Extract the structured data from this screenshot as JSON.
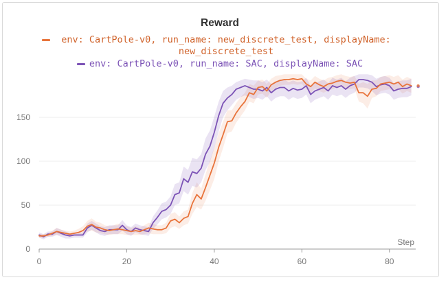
{
  "chart_data": {
    "type": "line",
    "title": "Reward",
    "xlabel": "Step",
    "ylabel": "",
    "xlim": [
      0,
      86
    ],
    "ylim": [
      0,
      200
    ],
    "xticks": [
      0,
      20,
      40,
      60,
      80
    ],
    "yticks": [
      0,
      50,
      100,
      150
    ],
    "grid": true,
    "legend_position": "top-center",
    "series": [
      {
        "name": "env: CartPole-v0, run_name: new_discrete_test, displayName: new_discrete_test",
        "color": "#e8733a",
        "x": [
          0,
          1,
          2,
          3,
          4,
          5,
          6,
          7,
          8,
          9,
          10,
          11,
          12,
          13,
          14,
          15,
          16,
          17,
          18,
          19,
          20,
          21,
          22,
          23,
          24,
          25,
          26,
          27,
          28,
          29,
          30,
          31,
          32,
          33,
          34,
          35,
          36,
          37,
          38,
          39,
          40,
          41,
          42,
          43,
          44,
          45,
          46,
          47,
          48,
          49,
          50,
          51,
          52,
          53,
          54,
          55,
          56,
          57,
          58,
          59,
          60,
          61,
          62,
          63,
          64,
          65,
          66,
          67,
          68,
          69,
          70,
          71,
          72,
          73,
          74,
          75,
          76,
          77,
          78,
          79,
          80,
          81,
          82,
          83,
          84,
          85
        ],
        "y": [
          15,
          15,
          16,
          18,
          20,
          19,
          18,
          17,
          18,
          19,
          21,
          26,
          28,
          25,
          24,
          22,
          21,
          22,
          23,
          22,
          21,
          20,
          21,
          20,
          22,
          24,
          23,
          22,
          22,
          24,
          32,
          34,
          30,
          35,
          37,
          52,
          62,
          57,
          70,
          84,
          98,
          116,
          130,
          145,
          146,
          155,
          162,
          168,
          178,
          176,
          184,
          185,
          180,
          187,
          190,
          192,
          193,
          193,
          194,
          193,
          194,
          188,
          185,
          190,
          187,
          185,
          188,
          189,
          191,
          192,
          190,
          189,
          190,
          178,
          178,
          174,
          182,
          183,
          188,
          189,
          190,
          188,
          190,
          185,
          188,
          186
        ],
        "band": {
          "lower": [
            13,
            13,
            14,
            15,
            16,
            16,
            15,
            14,
            15,
            15,
            16,
            20,
            21,
            19,
            18,
            17,
            16,
            17,
            17,
            17,
            16,
            16,
            16,
            16,
            17,
            18,
            17,
            17,
            17,
            18,
            24,
            26,
            23,
            27,
            29,
            40,
            48,
            45,
            55,
            67,
            80,
            100,
            115,
            132,
            134,
            144,
            151,
            158,
            168,
            166,
            176,
            177,
            172,
            180,
            183,
            186,
            187,
            187,
            188,
            187,
            188,
            182,
            178,
            183,
            180,
            178,
            181,
            182,
            184,
            185,
            183,
            182,
            183,
            168,
            166,
            160,
            172,
            174,
            180,
            181,
            182,
            180,
            182,
            177,
            180,
            178
          ],
          "upper": [
            17,
            17,
            18,
            21,
            24,
            22,
            21,
            20,
            21,
            23,
            26,
            32,
            35,
            31,
            30,
            27,
            26,
            27,
            29,
            27,
            26,
            24,
            26,
            24,
            27,
            30,
            29,
            27,
            27,
            30,
            40,
            42,
            37,
            43,
            45,
            64,
            76,
            69,
            85,
            101,
            116,
            132,
            145,
            158,
            158,
            166,
            173,
            178,
            188,
            186,
            192,
            193,
            188,
            194,
            197,
            198,
            199,
            199,
            199,
            199,
            199,
            194,
            192,
            197,
            194,
            192,
            195,
            196,
            198,
            199,
            197,
            196,
            197,
            188,
            190,
            188,
            192,
            192,
            196,
            197,
            198,
            196,
            198,
            193,
            196,
            194
          ]
        }
      },
      {
        "name": "env: CartPole-v0, run_name: SAC, displayName: SAC",
        "color": "#7c53b6",
        "x": [
          0,
          1,
          2,
          3,
          4,
          5,
          6,
          7,
          8,
          9,
          10,
          11,
          12,
          13,
          14,
          15,
          16,
          17,
          18,
          19,
          20,
          21,
          22,
          23,
          24,
          25,
          26,
          27,
          28,
          29,
          30,
          31,
          32,
          33,
          34,
          35,
          36,
          37,
          38,
          39,
          40,
          41,
          42,
          43,
          44,
          45,
          46,
          47,
          48,
          49,
          50,
          51,
          52,
          53,
          54,
          55,
          56,
          57,
          58,
          59,
          60,
          61,
          62,
          63,
          64,
          65,
          66,
          67,
          68,
          69,
          70,
          71,
          72,
          73,
          74,
          75,
          76,
          77,
          78,
          79,
          80,
          81,
          82,
          83,
          84,
          85
        ],
        "y": [
          16,
          14,
          17,
          17,
          20,
          18,
          16,
          15,
          16,
          16,
          16,
          24,
          27,
          24,
          21,
          20,
          22,
          22,
          22,
          27,
          22,
          20,
          24,
          22,
          21,
          20,
          30,
          36,
          43,
          45,
          50,
          62,
          64,
          80,
          76,
          88,
          86,
          92,
          108,
          117,
          133,
          152,
          166,
          172,
          176,
          182,
          184,
          186,
          184,
          182,
          182,
          180,
          184,
          178,
          182,
          184,
          184,
          180,
          183,
          181,
          182,
          186,
          176,
          180,
          182,
          184,
          180,
          186,
          184,
          186,
          182,
          186,
          188,
          193,
          193,
          192,
          190,
          185,
          187,
          188,
          186,
          180,
          182,
          183,
          183,
          185
        ],
        "band": {
          "lower": [
            13,
            11,
            14,
            14,
            16,
            14,
            12,
            12,
            13,
            13,
            13,
            19,
            22,
            19,
            16,
            15,
            17,
            17,
            17,
            21,
            17,
            15,
            19,
            17,
            16,
            15,
            23,
            28,
            34,
            36,
            40,
            50,
            52,
            66,
            62,
            72,
            70,
            76,
            90,
            99,
            115,
            134,
            150,
            158,
            164,
            170,
            173,
            175,
            173,
            171,
            172,
            170,
            174,
            168,
            172,
            174,
            174,
            170,
            173,
            171,
            172,
            176,
            166,
            170,
            172,
            174,
            170,
            176,
            174,
            176,
            172,
            176,
            178,
            184,
            184,
            183,
            180,
            175,
            177,
            178,
            176,
            170,
            172,
            173,
            173,
            175
          ],
          "upper": [
            19,
            17,
            20,
            20,
            24,
            22,
            20,
            18,
            19,
            19,
            19,
            29,
            32,
            29,
            26,
            25,
            27,
            27,
            27,
            33,
            27,
            25,
            29,
            27,
            26,
            25,
            37,
            44,
            52,
            54,
            60,
            74,
            76,
            94,
            90,
            104,
            102,
            108,
            126,
            135,
            151,
            168,
            180,
            184,
            186,
            190,
            192,
            194,
            193,
            192,
            192,
            190,
            193,
            188,
            191,
            193,
            193,
            190,
            192,
            190,
            191,
            195,
            186,
            189,
            191,
            193,
            189,
            195,
            193,
            195,
            191,
            195,
            197,
            199,
            199,
            199,
            198,
            194,
            196,
            197,
            195,
            189,
            191,
            192,
            192,
            194
          ]
        }
      }
    ]
  }
}
